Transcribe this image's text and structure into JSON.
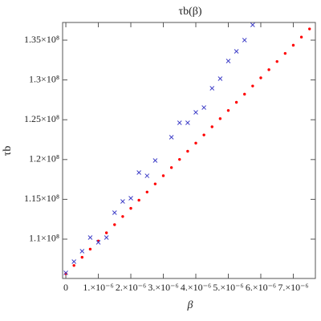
{
  "chart_data": {
    "type": "scatter",
    "title": "τb(β)",
    "x_label": "β",
    "y_label": "τb",
    "x": [
      0,
      2.5e-07,
      5e-07,
      7.5e-07,
      1e-06,
      1.25e-06,
      1.5e-06,
      1.75e-06,
      2e-06,
      2.25e-06,
      2.5e-06,
      2.75e-06,
      3e-06,
      3.25e-06,
      3.5e-06,
      3.75e-06,
      4e-06,
      4.25e-06,
      4.5e-06,
      4.75e-06,
      5e-06,
      5.25e-06,
      5.5e-06,
      5.75e-06,
      6e-06,
      6.25e-06,
      6.5e-06,
      6.75e-06,
      7e-06,
      7.25e-06,
      7.5e-06
    ],
    "series": [
      {
        "color": "#ff0000",
        "marker": "dot",
        "values": [
          105670000,
          106694700,
          107719400,
          108744100,
          109768800,
          110793500,
          111818200,
          112842900,
          113867600,
          114892300,
          115917000,
          116941700,
          117966400,
          118991100,
          120015800,
          121040500,
          122065200,
          123089900,
          124114600,
          125139300,
          126164000,
          127188700,
          128213400,
          129238100,
          130262800,
          131287500,
          132312200,
          133336900,
          134361600,
          135386300,
          136411000
        ]
      },
      {
        "color": "#4040c8",
        "marker": "cross",
        "values": [
          105770000,
          107180000,
          108490000,
          110200000,
          109600000,
          110200000,
          113330000,
          114740000,
          115140000,
          118370000,
          117960000,
          119880000,
          null,
          122800000,
          124620000,
          124620000,
          125930000,
          126530000,
          128950000,
          130160000,
          132380000,
          133590000,
          135000000,
          136920000,
          null,
          null,
          null,
          null,
          null,
          null,
          null
        ]
      }
    ],
    "xlim": [
      -1e-07,
      7.68e-06
    ],
    "xticks": [
      0,
      {
        "value": 1e-06,
        "label": "1.×10⁻⁶"
      },
      {
        "value": 2e-06,
        "label": "2.×10⁻⁶"
      },
      {
        "value": 3e-06,
        "label": "3.×10⁻⁶"
      },
      {
        "value": 4e-06,
        "label": "4.×10⁻⁶"
      },
      {
        "value": 5e-06,
        "label": "5.×10⁻⁶"
      },
      {
        "value": 6e-06,
        "label": "6.×10⁻⁶"
      },
      {
        "value": 7e-06,
        "label": "7.×10⁻⁶"
      }
    ],
    "ylim": [
      105060000,
      137220000
    ],
    "yticks": [
      {
        "value": 110000000,
        "label": "1.1×10⁸"
      },
      {
        "value": 115000000,
        "label": "1.15×10⁸"
      },
      {
        "value": 120000000,
        "label": "1.2×10⁸"
      },
      {
        "value": 125000000,
        "label": "1.25×10⁸"
      },
      {
        "value": 130000000,
        "label": "1.3×10⁸"
      },
      {
        "value": 135000000,
        "label": "1.35×10⁸"
      }
    ]
  }
}
